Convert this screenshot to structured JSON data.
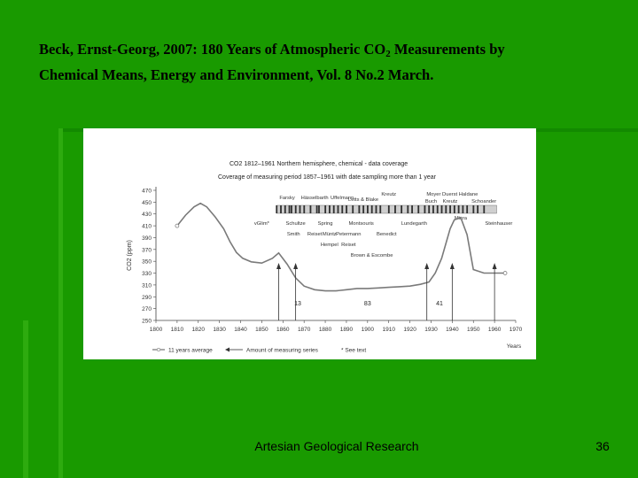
{
  "slide": {
    "title_line1_pre": "Beck, Ernst-Georg, 2007: 180 Years of Atmospheric CO",
    "title_line1_sub": "2",
    "title_line1_post": " Measurements by",
    "title_line2": "Chemical Means, Energy and Environment, Vol. 8 No.2 March.",
    "footer": "Artesian Geological Research",
    "page_number": "36",
    "colors": {
      "background": "#199a00",
      "chart_bg": "#ffffff",
      "line": "#808080",
      "bar": "#303030"
    }
  },
  "chart_data": {
    "type": "line",
    "title": "CO2 1812–1961 Northern hemisphere, chemical - data coverage",
    "subtitle": "Coverage of measuring period 1857–1961 with date sampling more than 1 year",
    "ylabel": "CO2 (ppm)",
    "xlabel": "Years",
    "xlim": [
      1800,
      1970
    ],
    "ylim": [
      250,
      470
    ],
    "x_ticks": [
      "1800",
      "1810",
      "1820",
      "1830",
      "1840",
      "1850",
      "1860",
      "1870",
      "1880",
      "1890",
      "1900",
      "1910",
      "1920",
      "1930",
      "1940",
      "1950",
      "1960",
      "1970"
    ],
    "y_ticks": [
      "470",
      "450",
      "430",
      "410",
      "390",
      "370",
      "350",
      "330",
      "310",
      "290",
      "270",
      "250"
    ],
    "series": [
      {
        "name": "11 years average",
        "x": [
          1810,
          1814,
          1818,
          1821,
          1824,
          1828,
          1832,
          1835,
          1838,
          1841,
          1845,
          1850,
          1855,
          1858,
          1862,
          1866,
          1870,
          1875,
          1880,
          1885,
          1890,
          1895,
          1900,
          1905,
          1910,
          1915,
          1920,
          1925,
          1929,
          1932,
          1935,
          1937,
          1939,
          1941,
          1944,
          1947,
          1950,
          1955,
          1960,
          1965
        ],
        "y": [
          410,
          428,
          442,
          448,
          442,
          425,
          405,
          383,
          365,
          355,
          349,
          347,
          355,
          364,
          345,
          322,
          308,
          302,
          300,
          300,
          302,
          304,
          304,
          305,
          306,
          307,
          308,
          311,
          315,
          330,
          355,
          380,
          405,
          420,
          424,
          395,
          336,
          330,
          330,
          330
        ]
      }
    ],
    "arrows": [
      {
        "year": 1858,
        "label": ""
      },
      {
        "year": 1866,
        "label": "13"
      },
      {
        "year": 1928,
        "label": ""
      },
      {
        "year": 1940,
        "label": ""
      },
      {
        "year": 1960,
        "label": ""
      }
    ],
    "period_counts": [
      {
        "year": 1867,
        "label": "13"
      },
      {
        "year": 1900,
        "label": "83"
      },
      {
        "year": 1934,
        "label": "41"
      }
    ],
    "coverage_years": [
      1857,
      1859,
      1861,
      1863,
      1864,
      1866,
      1868,
      1870,
      1873,
      1876,
      1877,
      1880,
      1882,
      1884,
      1886,
      1888,
      1890,
      1893,
      1896,
      1898,
      1900,
      1902,
      1904,
      1906,
      1910,
      1913,
      1916,
      1919,
      1921,
      1924,
      1927,
      1929,
      1931,
      1933,
      1935,
      1937,
      1939,
      1941,
      1943,
      1945,
      1947,
      1950,
      1952,
      1955
    ],
    "coverage_range": [
      1857,
      1961
    ],
    "annotations_above": [
      {
        "text": "Farsky",
        "year": 1862,
        "row": 1
      },
      {
        "text": "Hässelbarth",
        "year": 1875,
        "row": 1
      },
      {
        "text": "Uffelmann",
        "year": 1888,
        "row": 1
      },
      {
        "text": "Kreutz",
        "year": 1910,
        "row": 0
      },
      {
        "text": "Letts & Blake",
        "year": 1898,
        "row": 1.5
      },
      {
        "text": "Moyer Duerst Haldane",
        "year": 1940,
        "row": 0
      },
      {
        "text": "Buch",
        "year": 1930,
        "row": 2
      },
      {
        "text": "Kreutz",
        "year": 1939,
        "row": 2
      },
      {
        "text": "Schoander",
        "year": 1955,
        "row": 2
      }
    ],
    "annotations_below": [
      {
        "text": "vGlim*",
        "year": 1850,
        "row": 0
      },
      {
        "text": "Schultze",
        "year": 1866,
        "row": 0
      },
      {
        "text": "Spring",
        "year": 1880,
        "row": 0
      },
      {
        "text": "Montsouris",
        "year": 1897,
        "row": 0
      },
      {
        "text": "Lundegarth",
        "year": 1922,
        "row": 0
      },
      {
        "text": "Misra",
        "year": 1944,
        "row": -0.5
      },
      {
        "text": "Steinhauser",
        "year": 1962,
        "row": 0
      },
      {
        "text": "Smith",
        "year": 1865,
        "row": 1
      },
      {
        "text": "Reiset",
        "year": 1875,
        "row": 1
      },
      {
        "text": "Müntz",
        "year": 1882,
        "row": 1
      },
      {
        "text": "Petermann",
        "year": 1891,
        "row": 1
      },
      {
        "text": "Benedict",
        "year": 1909,
        "row": 1
      },
      {
        "text": "Hempel",
        "year": 1882,
        "row": 2
      },
      {
        "text": "Reiset",
        "year": 1891,
        "row": 2
      },
      {
        "text": "Brown & Escombe",
        "year": 1902,
        "row": 3
      }
    ],
    "legend": [
      {
        "label": "11 years average",
        "symbol": "line-circle"
      },
      {
        "label": "Amount of measuring series",
        "symbol": "arrow"
      },
      {
        "label": "* See text",
        "symbol": "none"
      }
    ]
  }
}
